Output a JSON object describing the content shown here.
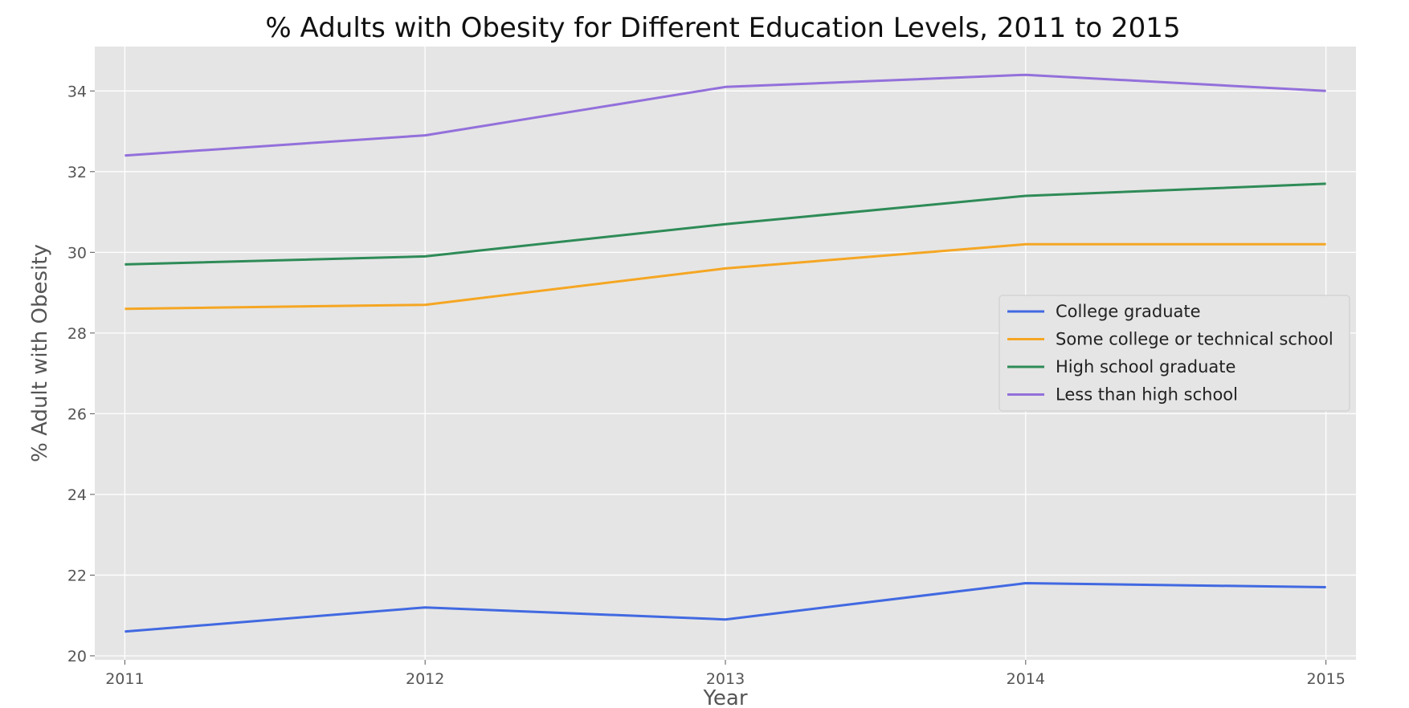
{
  "chart_data": {
    "type": "line",
    "title": "% Adults with Obesity for Different Education Levels, 2011 to 2015",
    "xlabel": "Year",
    "ylabel": "% Adult with Obesity",
    "x": [
      2011,
      2012,
      2013,
      2014,
      2015
    ],
    "x_tick_labels": [
      "2011",
      "2012",
      "2013",
      "2014",
      "2015"
    ],
    "y_ticks": [
      20,
      22,
      24,
      26,
      28,
      30,
      32,
      34
    ],
    "y_tick_labels": [
      "20",
      "22",
      "24",
      "26",
      "28",
      "30",
      "32",
      "34"
    ],
    "xlim": [
      2010.9,
      2015.1
    ],
    "ylim": [
      19.9,
      35.1
    ],
    "grid": true,
    "legend_position": "center-right",
    "background": "#e5e5e5",
    "series": [
      {
        "name": "College graduate",
        "color": "#4169e1",
        "values": [
          20.6,
          21.2,
          20.9,
          21.8,
          21.7
        ]
      },
      {
        "name": "Some college or technical school",
        "color": "#f5a623",
        "values": [
          28.6,
          28.7,
          29.6,
          30.2,
          30.2
        ]
      },
      {
        "name": "High school graduate",
        "color": "#2e8b57",
        "values": [
          29.7,
          29.9,
          30.7,
          31.4,
          31.7
        ]
      },
      {
        "name": "Less than high school",
        "color": "#9370db",
        "values": [
          32.4,
          32.9,
          34.1,
          34.4,
          34.0
        ]
      }
    ]
  }
}
